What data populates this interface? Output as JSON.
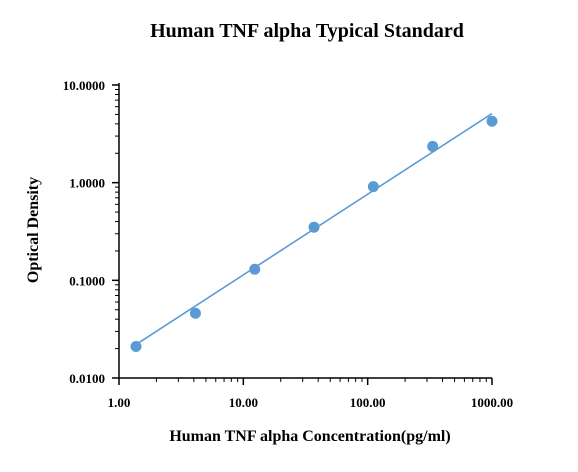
{
  "chart_data": {
    "type": "scatter",
    "title": "Human TNF alpha Typical Standard",
    "xlabel": "Human TNF alpha Concentration(pg/ml)",
    "ylabel": "Optical Density",
    "x_scale": "log",
    "y_scale": "log",
    "xlim": [
      1,
      1000
    ],
    "ylim": [
      0.01,
      10
    ],
    "x_ticks": [
      {
        "value": 1,
        "label": "1.00"
      },
      {
        "value": 10,
        "label": "10.00"
      },
      {
        "value": 100,
        "label": "100.00"
      },
      {
        "value": 1000,
        "label": "1000.00"
      }
    ],
    "y_ticks": [
      {
        "value": 0.01,
        "label": "0.0100"
      },
      {
        "value": 0.1,
        "label": "0.1000"
      },
      {
        "value": 1,
        "label": "1.0000"
      },
      {
        "value": 10,
        "label": "10.0000"
      }
    ],
    "grid": false,
    "colors": {
      "points": "#5b9bd5",
      "fit_line": "#5b9bd5"
    },
    "series": [
      {
        "x": [
          1.37,
          4.12,
          12.35,
          37.04,
          111.11,
          333.33,
          1000
        ],
        "y": [
          0.021,
          0.046,
          0.13,
          0.35,
          0.91,
          2.35,
          4.25
        ]
      }
    ],
    "fit_line": {
      "x": [
        1.37,
        1000
      ],
      "y": [
        0.022,
        5.1
      ]
    }
  }
}
